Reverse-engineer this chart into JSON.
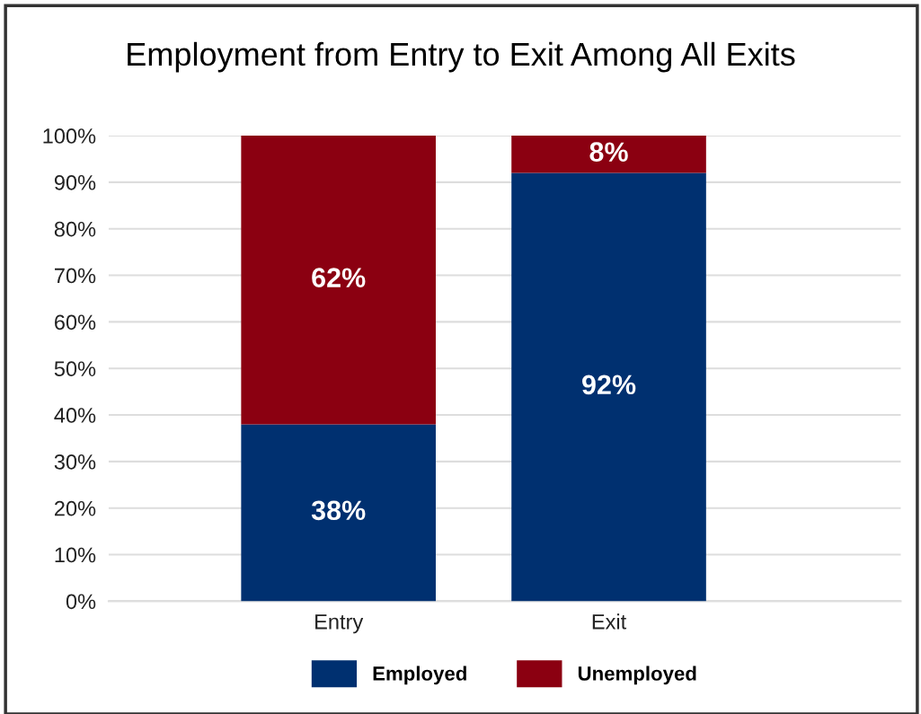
{
  "chart_data": {
    "type": "bar",
    "title": "Employment from Entry to Exit Among All Exits",
    "categories": [
      "Entry",
      "Exit"
    ],
    "series": [
      {
        "name": "Employed",
        "color": "#003070",
        "values": [
          38,
          92
        ],
        "value_labels": [
          "38%",
          "92%"
        ]
      },
      {
        "name": "Unemployed",
        "color": "#8b0011",
        "values": [
          62,
          8
        ],
        "value_labels": [
          "62%",
          "8%"
        ]
      }
    ],
    "stacked": true,
    "ylim": [
      0,
      100
    ],
    "yticks": [
      {
        "value": 0,
        "label": "0%"
      },
      {
        "value": 10,
        "label": "10%"
      },
      {
        "value": 20,
        "label": "20%"
      },
      {
        "value": 30,
        "label": "30%"
      },
      {
        "value": 40,
        "label": "40%"
      },
      {
        "value": 50,
        "label": "50%"
      },
      {
        "value": 60,
        "label": "60%"
      },
      {
        "value": 70,
        "label": "70%"
      },
      {
        "value": 80,
        "label": "80%"
      },
      {
        "value": 90,
        "label": "90%"
      },
      {
        "value": 100,
        "label": "100%"
      }
    ],
    "grid": "y",
    "legend": "bottom"
  }
}
